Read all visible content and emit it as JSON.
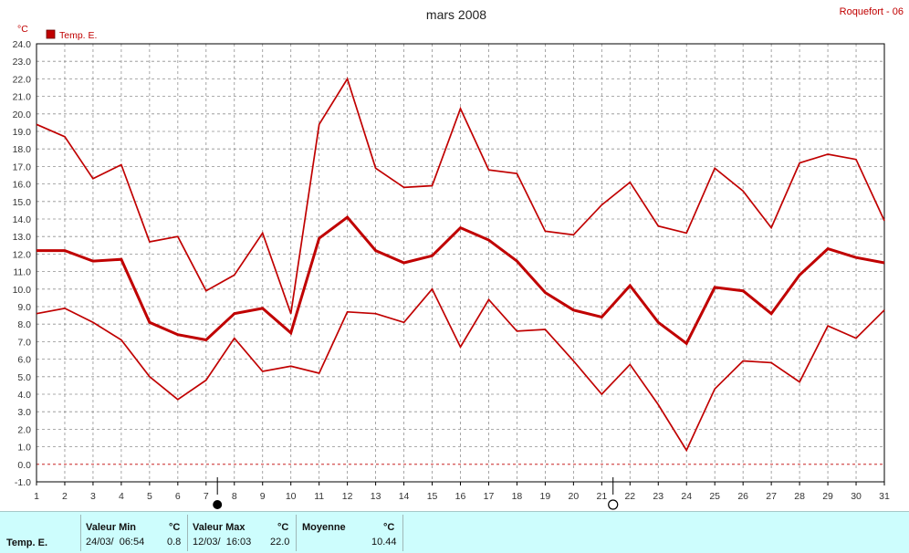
{
  "station": "Roquefort - 06",
  "chart_data": {
    "type": "line",
    "title": "mars 2008",
    "ylabel": "°C",
    "xlim": [
      1,
      31
    ],
    "ylim": [
      -1.0,
      24.0
    ],
    "y_ticks": [
      "-1.0",
      "0.0",
      "1.0",
      "2.0",
      "3.0",
      "4.0",
      "5.0",
      "6.0",
      "7.0",
      "8.0",
      "9.0",
      "10.0",
      "11.0",
      "12.0",
      "13.0",
      "14.0",
      "15.0",
      "16.0",
      "17.0",
      "18.0",
      "19.0",
      "20.0",
      "21.0",
      "22.0",
      "23.0",
      "24.0"
    ],
    "x_ticks": [
      "1",
      "2",
      "3",
      "4",
      "5",
      "6",
      "7",
      "8",
      "9",
      "10",
      "11",
      "12",
      "13",
      "14",
      "15",
      "16",
      "17",
      "18",
      "19",
      "20",
      "21",
      "22",
      "23",
      "24",
      "25",
      "26",
      "27",
      "28",
      "29",
      "30",
      "31"
    ],
    "grid": true,
    "legend": {
      "position": "top-left",
      "label": "Temp. E."
    },
    "colors": {
      "series": "#c00000",
      "grid": "#909090",
      "zero_line": "#c00000"
    },
    "x": [
      1,
      2,
      3,
      4,
      5,
      6,
      7,
      8,
      9,
      10,
      11,
      12,
      13,
      14,
      15,
      16,
      17,
      18,
      19,
      20,
      21,
      22,
      23,
      24,
      25,
      26,
      27,
      28,
      29,
      30,
      31
    ],
    "series": [
      {
        "role": "max",
        "values": [
          19.4,
          18.7,
          16.3,
          17.1,
          12.7,
          13.0,
          9.9,
          10.8,
          13.2,
          8.6,
          19.4,
          22.0,
          16.9,
          15.8,
          15.9,
          20.3,
          16.8,
          16.6,
          13.3,
          13.1,
          14.8,
          16.1,
          13.6,
          13.2,
          16.9,
          15.6,
          13.5,
          17.2,
          17.7,
          17.4,
          13.9
        ]
      },
      {
        "role": "mean",
        "values": [
          12.2,
          12.2,
          11.6,
          11.7,
          8.1,
          7.4,
          7.1,
          8.6,
          8.9,
          7.5,
          12.9,
          14.1,
          12.2,
          11.5,
          11.9,
          13.5,
          12.8,
          11.6,
          9.8,
          8.8,
          8.4,
          10.2,
          8.1,
          6.9,
          10.1,
          9.9,
          8.6,
          10.8,
          12.3,
          11.8,
          11.5
        ]
      },
      {
        "role": "min",
        "values": [
          8.6,
          8.9,
          8.1,
          7.1,
          5.0,
          3.7,
          4.8,
          7.2,
          5.3,
          5.6,
          5.2,
          8.7,
          8.6,
          8.1,
          10.0,
          6.7,
          9.4,
          7.6,
          7.7,
          5.9,
          4.0,
          5.7,
          3.4,
          0.8,
          4.3,
          5.9,
          5.8,
          4.7,
          7.9,
          7.2,
          8.8
        ]
      }
    ],
    "annotations": [
      {
        "x": 7.4,
        "symbol": "full-moon"
      },
      {
        "x": 21.4,
        "symbol": "new-moon"
      }
    ]
  },
  "footer": {
    "series_label": "Temp. E.",
    "min_label": "Valeur Min",
    "min_unit": "°C",
    "min_when": "24/03/  06:54",
    "min_value": "0.8",
    "max_label": "Valeur Max",
    "max_unit": "°C",
    "max_when": "12/03/  16:03",
    "max_value": "22.0",
    "mean_label": "Moyenne",
    "mean_unit": "°C",
    "mean_value": "10.44"
  }
}
